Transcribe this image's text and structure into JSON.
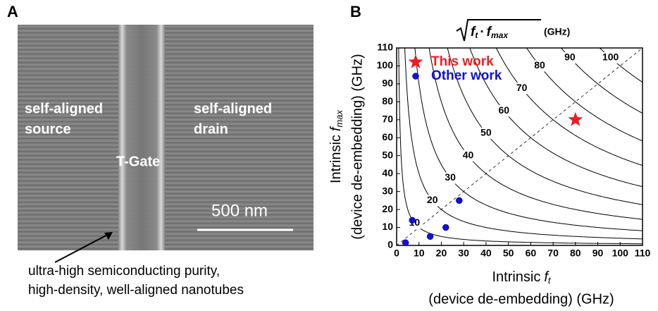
{
  "panel_a": {
    "label": "A",
    "source": [
      "self-aligned",
      "source"
    ],
    "drain": [
      "self-aligned",
      "drain"
    ],
    "gate": "T-Gate",
    "scale": "500 nm",
    "caption": [
      "ultra-high semiconducting purity,",
      "high-density, well-aligned nanotubes"
    ]
  },
  "chart_data": {
    "type": "scatter",
    "panel_label": "B",
    "title": {
      "parts": [
        "f",
        "t",
        "·",
        "f",
        "max"
      ],
      "unit": "(GHz)"
    },
    "x_label": {
      "text": "Intrinsic",
      "symbol": "f",
      "sub": "t",
      "line2": "(device de-embedding) (GHz)"
    },
    "y_label": {
      "text": "Intrinsic",
      "symbol": "f",
      "sub": "max",
      "line2": "(device de-embedding) (GHz)"
    },
    "xlim": [
      0,
      110
    ],
    "ylim": [
      0,
      110
    ],
    "xticks": [
      0,
      10,
      20,
      30,
      40,
      50,
      60,
      70,
      80,
      90,
      100,
      110
    ],
    "yticks": [
      0,
      10,
      20,
      30,
      40,
      50,
      60,
      70,
      80,
      90,
      100,
      110
    ],
    "contours": [
      10,
      20,
      30,
      40,
      50,
      60,
      70,
      80,
      90,
      100
    ],
    "series": [
      {
        "name": "This work",
        "color": "#ee1c25",
        "marker": "star",
        "x": [
          80
        ],
        "values": [
          70
        ]
      },
      {
        "name": "Other work",
        "color": "#1010d8",
        "marker": "circle",
        "x": [
          4,
          7,
          15,
          22,
          28
        ],
        "values": [
          1.5,
          14,
          5,
          10,
          25
        ]
      }
    ]
  }
}
